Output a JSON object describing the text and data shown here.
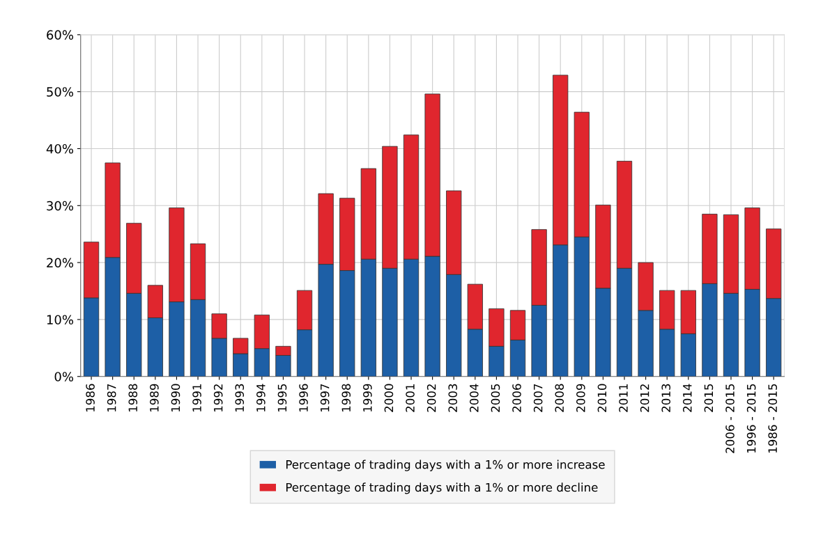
{
  "chart_data": {
    "type": "bar",
    "stacked": true,
    "categories": [
      "1986",
      "1987",
      "1988",
      "1989",
      "1990",
      "1991",
      "1992",
      "1993",
      "1994",
      "1995",
      "1996",
      "1997",
      "1998",
      "1999",
      "2000",
      "2001",
      "2002",
      "2003",
      "2004",
      "2005",
      "2006",
      "2007",
      "2008",
      "2009",
      "2010",
      "2011",
      "2012",
      "2013",
      "2014",
      "2015",
      "2006 - 2015",
      "1996 - 2015",
      "1986 - 2015"
    ],
    "series": [
      {
        "name": "Percentage of trading days with a 1% or more increase",
        "color": "#1d5fa6",
        "values": [
          13.8,
          20.9,
          14.6,
          10.3,
          13.1,
          13.5,
          6.7,
          4.0,
          4.9,
          3.7,
          8.2,
          19.7,
          18.6,
          20.6,
          19.0,
          20.6,
          21.1,
          17.9,
          8.3,
          5.3,
          6.4,
          12.5,
          23.1,
          24.5,
          15.5,
          19.0,
          11.6,
          8.3,
          7.5,
          16.3,
          14.6,
          15.3,
          13.7
        ]
      },
      {
        "name": "Percentage of trading days with a 1% or more decline",
        "color": "#e0262e",
        "values": [
          9.8,
          16.6,
          12.3,
          5.7,
          16.5,
          9.8,
          4.3,
          2.7,
          5.9,
          1.6,
          6.9,
          12.4,
          12.7,
          15.9,
          21.4,
          21.8,
          28.5,
          14.7,
          7.9,
          6.6,
          5.2,
          13.3,
          29.8,
          21.9,
          14.6,
          18.8,
          8.4,
          6.8,
          7.6,
          12.2,
          13.8,
          14.3,
          12.2
        ]
      }
    ],
    "ylim": [
      0,
      60
    ],
    "yticks": [
      {
        "value": 0,
        "label": "0%"
      },
      {
        "value": 10,
        "label": "10%"
      },
      {
        "value": 20,
        "label": "20%"
      },
      {
        "value": 30,
        "label": "30%"
      },
      {
        "value": 40,
        "label": "40%"
      },
      {
        "value": 50,
        "label": "50%"
      },
      {
        "value": 60,
        "label": "60%"
      }
    ],
    "grid": true,
    "legend": "bottom"
  }
}
